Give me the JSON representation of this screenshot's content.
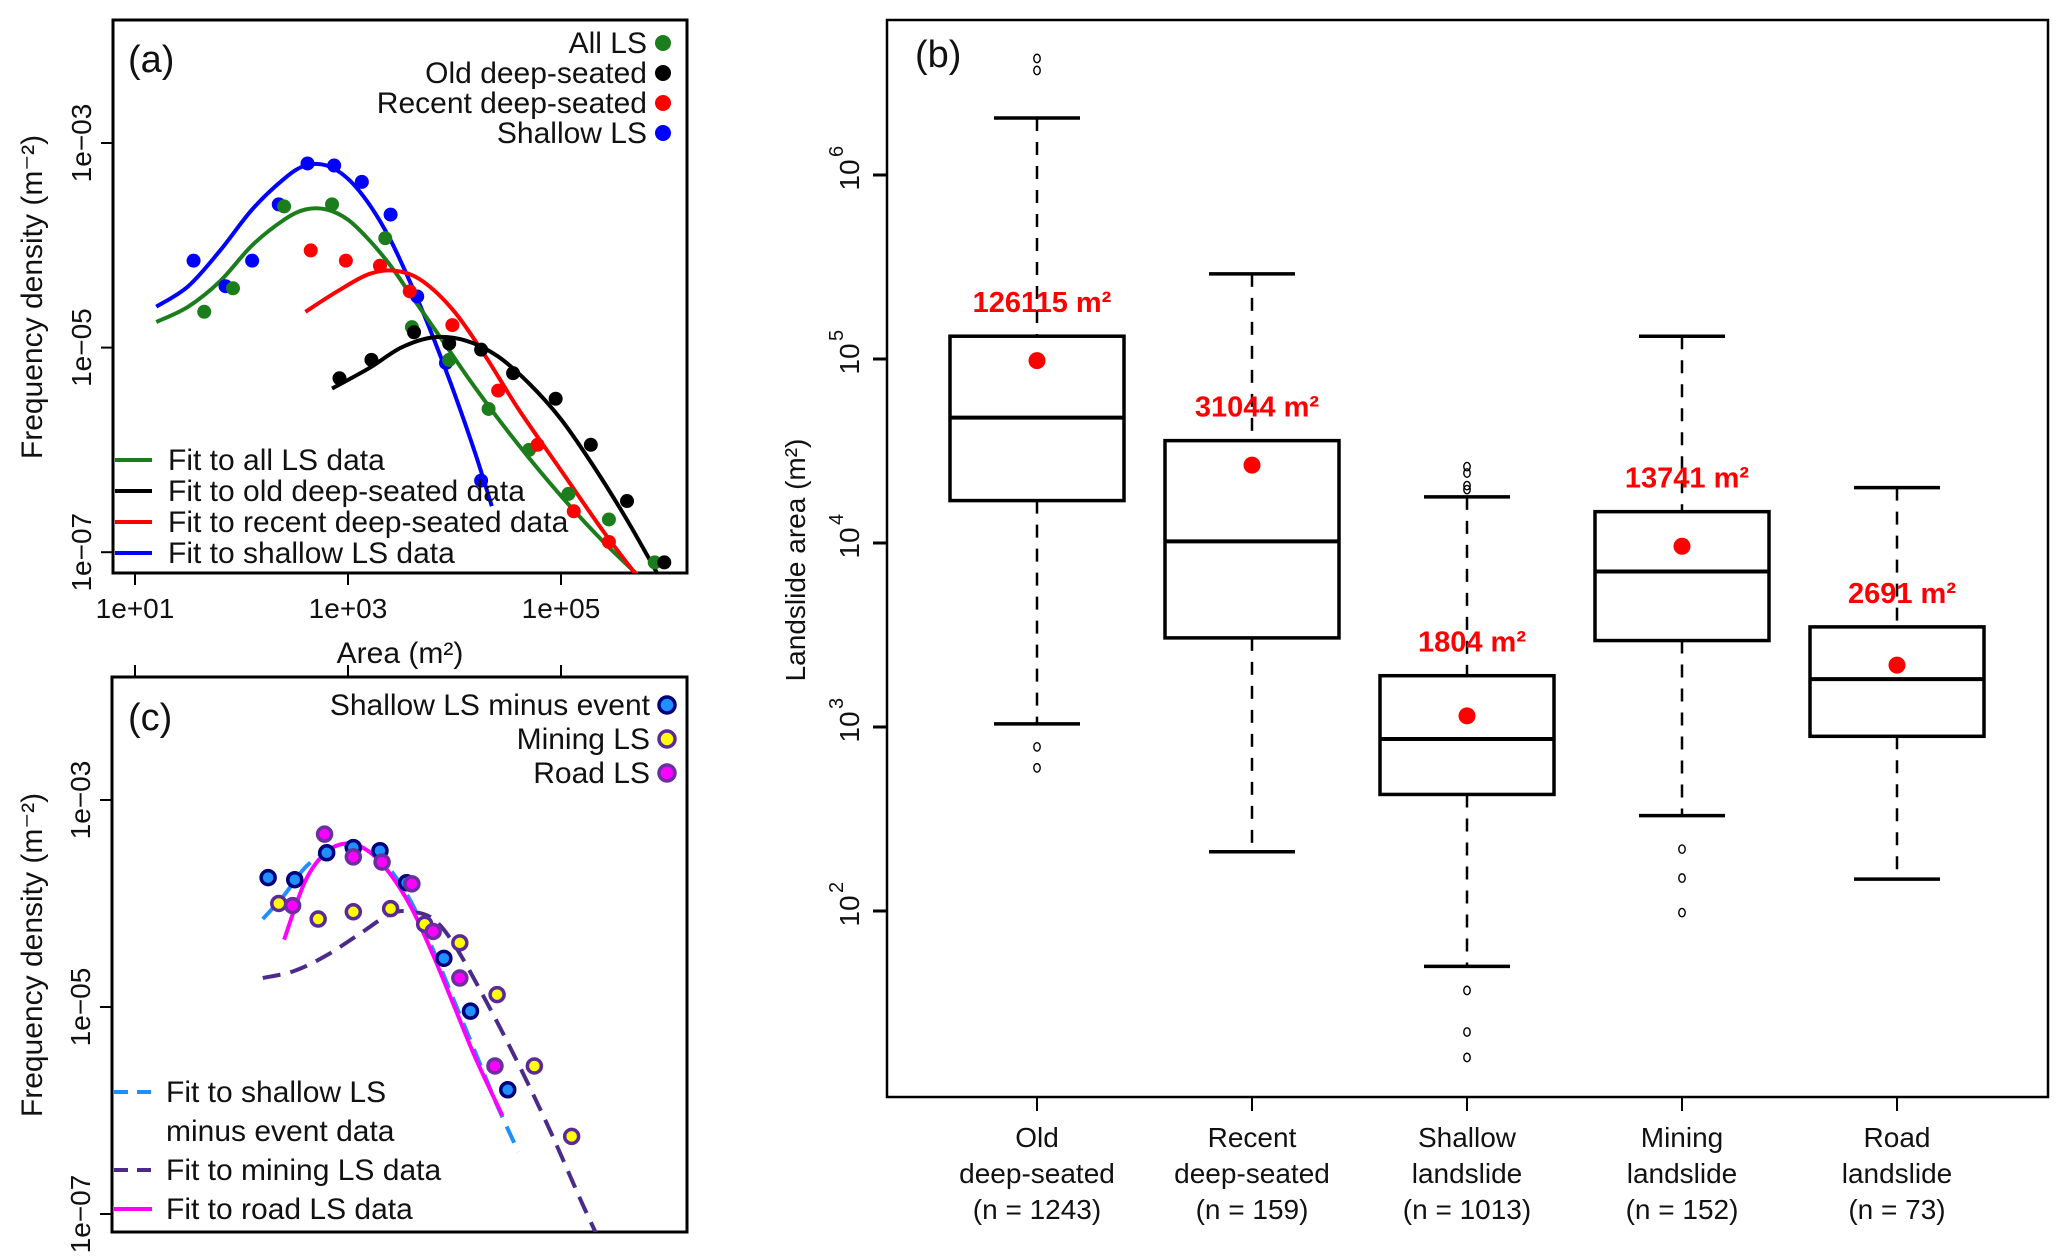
{
  "chart_data": [
    {
      "panel": "a",
      "type": "scatter",
      "panel_label": "(a)",
      "title": "",
      "xlabel": "Area (m²)",
      "ylabel": "Frequency density (m⁻²)",
      "xscale": "log",
      "yscale": "log",
      "xlim_log10": [
        0.8,
        6.2
      ],
      "ylim_log10": [
        -7.3,
        -2.2
      ],
      "xticks": [
        {
          "value_log10": 1,
          "label": "1e+01"
        },
        {
          "value_log10": 3,
          "label": "1e+03"
        },
        {
          "value_log10": 5,
          "label": "1e+05"
        }
      ],
      "yticks": [
        {
          "value_log10": -3,
          "label": "1e−03"
        },
        {
          "value_log10": -5,
          "label": "1e−05"
        },
        {
          "value_log10": -7,
          "label": "1e−07"
        }
      ],
      "legend_points": [
        {
          "label": "All LS",
          "color": "#1b7d1b"
        },
        {
          "label": "Old deep-seated",
          "color": "#000000"
        },
        {
          "label": "Recent deep-seated",
          "color": "#ff0000"
        },
        {
          "label": "Shallow LS",
          "color": "#0000ff"
        }
      ],
      "legend_lines": [
        {
          "label": "Fit to all LS data",
          "color": "#1b7d1b"
        },
        {
          "label": "Fit to old deep-seated data",
          "color": "#000000"
        },
        {
          "label": "Fit to recent deep-seated data",
          "color": "#ff0000"
        },
        {
          "label": "Fit to shallow LS data",
          "color": "#0000ff"
        }
      ],
      "series": [
        {
          "name": "Shallow LS",
          "color": "#0000ff",
          "kind": "points",
          "x_log10": [
            1.55,
            1.85,
            2.1,
            2.35,
            2.62,
            2.87,
            3.13,
            3.4,
            3.65,
            3.92,
            4.25
          ],
          "y_log10": [
            -4.15,
            -4.4,
            -4.15,
            -3.6,
            -3.2,
            -3.22,
            -3.38,
            -3.7,
            -4.5,
            -5.15,
            -6.3
          ]
        },
        {
          "name": "All LS",
          "color": "#1b7d1b",
          "kind": "points",
          "x_log10": [
            1.65,
            1.92,
            2.4,
            2.85,
            3.35,
            3.6,
            3.95,
            4.32,
            4.7,
            5.07,
            5.45,
            5.88
          ],
          "y_log10": [
            -4.65,
            -4.42,
            -3.62,
            -3.6,
            -3.93,
            -4.8,
            -5.12,
            -5.6,
            -6.0,
            -6.43,
            -6.68,
            -7.1
          ]
        },
        {
          "name": "Recent deep-seated",
          "color": "#ff0000",
          "kind": "points",
          "x_log10": [
            2.65,
            2.98,
            3.3,
            3.58,
            3.98,
            4.41,
            4.78,
            5.12,
            5.45
          ],
          "y_log10": [
            -4.05,
            -4.15,
            -4.2,
            -4.45,
            -4.78,
            -5.42,
            -5.95,
            -6.6,
            -6.9
          ]
        },
        {
          "name": "Old deep-seated",
          "color": "#000000",
          "kind": "points",
          "x_log10": [
            2.92,
            3.22,
            3.62,
            3.95,
            4.25,
            4.55,
            4.95,
            5.28,
            5.62,
            5.97
          ],
          "y_log10": [
            -5.3,
            -5.12,
            -4.85,
            -4.96,
            -5.02,
            -5.25,
            -5.5,
            -5.95,
            -6.5,
            -7.1
          ]
        },
        {
          "name": "Fit to shallow LS data",
          "color": "#0000ff",
          "kind": "line",
          "x_log10": [
            1.2,
            1.5,
            1.8,
            2.1,
            2.4,
            2.6,
            2.8,
            3.0,
            3.2,
            3.4,
            3.6,
            3.8,
            4.0,
            4.2,
            4.35
          ],
          "y_log10": [
            -4.6,
            -4.4,
            -4.05,
            -3.65,
            -3.35,
            -3.22,
            -3.22,
            -3.35,
            -3.6,
            -3.95,
            -4.4,
            -4.9,
            -5.45,
            -6.05,
            -6.55
          ]
        },
        {
          "name": "Fit to all LS data",
          "color": "#1b7d1b",
          "kind": "line",
          "x_log10": [
            1.2,
            1.5,
            1.8,
            2.1,
            2.4,
            2.6,
            2.8,
            3.0,
            3.2,
            3.4,
            3.6,
            3.9,
            4.2,
            4.6,
            5.0,
            5.4,
            5.8,
            6.1
          ],
          "y_log10": [
            -4.75,
            -4.6,
            -4.35,
            -4.0,
            -3.75,
            -3.65,
            -3.65,
            -3.75,
            -3.95,
            -4.2,
            -4.5,
            -4.95,
            -5.4,
            -5.95,
            -6.45,
            -6.9,
            -7.3,
            -7.6
          ]
        },
        {
          "name": "Fit to recent deep-seated data",
          "color": "#ff0000",
          "kind": "line",
          "x_log10": [
            2.6,
            2.9,
            3.2,
            3.45,
            3.7,
            4.0,
            4.3,
            4.6,
            5.0,
            5.4,
            5.8,
            6.05
          ],
          "y_log10": [
            -4.65,
            -4.45,
            -4.28,
            -4.25,
            -4.35,
            -4.65,
            -5.1,
            -5.6,
            -6.2,
            -6.8,
            -7.35,
            -7.7
          ]
        },
        {
          "name": "Fit to old deep-seated data",
          "color": "#000000",
          "kind": "line",
          "x_log10": [
            2.85,
            3.2,
            3.5,
            3.8,
            4.1,
            4.4,
            4.7,
            5.0,
            5.3,
            5.6,
            5.9,
            6.05
          ],
          "y_log10": [
            -5.4,
            -5.2,
            -5.0,
            -4.9,
            -4.93,
            -5.08,
            -5.35,
            -5.7,
            -6.15,
            -6.65,
            -7.2,
            -7.5
          ]
        }
      ]
    },
    {
      "panel": "c",
      "type": "scatter",
      "panel_label": "(c)",
      "title": "",
      "xlabel": "",
      "ylabel": "Frequency density (m⁻²)",
      "xscale": "log",
      "yscale": "log",
      "xlim_log10": [
        0.8,
        6.2
      ],
      "ylim_log10": [
        -7.2,
        -2.2
      ],
      "xticks": [
        {
          "value_log10": 1,
          "label": ""
        },
        {
          "value_log10": 3,
          "label": ""
        },
        {
          "value_log10": 5,
          "label": ""
        }
      ],
      "yticks": [
        {
          "value_log10": -3,
          "label": "1e−03"
        },
        {
          "value_log10": -5,
          "label": "1e−05"
        },
        {
          "value_log10": -7,
          "label": "1e−07"
        }
      ],
      "legend_points": [
        {
          "label": "Shallow LS minus event",
          "fill": "#1e90ff",
          "stroke": "#00007a"
        },
        {
          "label": "Mining LS",
          "fill": "#ffff00",
          "stroke": "#5b2a9a"
        },
        {
          "label": "Road LS",
          "fill": "#ff00ff",
          "stroke": "#6b2fa0"
        }
      ],
      "legend_lines": [
        {
          "label": "Fit to shallow LS\nminus event data",
          "color": "#1e90ff",
          "dash": true
        },
        {
          "label": "Fit to mining LS data",
          "color": "#4b2a8a",
          "dash": true
        },
        {
          "label": "Fit to road LS data",
          "color": "#ff00ff",
          "dash": false
        }
      ],
      "series": [
        {
          "name": "Shallow LS minus event",
          "kind": "points",
          "fill": "#1e90ff",
          "stroke": "#00007a",
          "x_log10": [
            2.25,
            2.5,
            2.8,
            3.05,
            3.3,
            3.55,
            3.9,
            4.15,
            4.5
          ],
          "y_log10": [
            -3.75,
            -3.77,
            -3.51,
            -3.46,
            -3.49,
            -3.8,
            -4.53,
            -5.04,
            -5.8
          ]
        },
        {
          "name": "Mining LS",
          "kind": "points",
          "fill": "#ffff00",
          "stroke": "#5b2a9a",
          "x_log10": [
            2.35,
            2.72,
            3.05,
            3.4,
            3.72,
            4.05,
            4.4,
            4.75,
            5.1
          ],
          "y_log10": [
            -4.0,
            -4.15,
            -4.08,
            -4.05,
            -4.2,
            -4.38,
            -4.88,
            -5.57,
            -6.25
          ]
        },
        {
          "name": "Road LS",
          "kind": "points",
          "fill": "#ff00ff",
          "stroke": "#6b2fa0",
          "x_log10": [
            2.48,
            2.78,
            3.05,
            3.32,
            3.6,
            3.8,
            4.05,
            4.38
          ],
          "y_log10": [
            -4.02,
            -3.33,
            -3.55,
            -3.6,
            -3.81,
            -4.27,
            -4.72,
            -5.57
          ]
        },
        {
          "name": "Fit to shallow LS minus event data",
          "kind": "line",
          "color": "#1e90ff",
          "dash": true,
          "x_log10": [
            2.2,
            2.4,
            2.6,
            2.8,
            3.0,
            3.2,
            3.4,
            3.6,
            3.8,
            4.0,
            4.2,
            4.4,
            4.6
          ],
          "y_log10": [
            -4.15,
            -3.92,
            -3.65,
            -3.5,
            -3.45,
            -3.5,
            -3.68,
            -4.0,
            -4.45,
            -4.95,
            -5.45,
            -5.95,
            -6.4
          ]
        },
        {
          "name": "Fit to mining LS data",
          "kind": "line",
          "color": "#4b2a8a",
          "dash": true,
          "x_log10": [
            2.2,
            2.5,
            2.8,
            3.1,
            3.4,
            3.6,
            3.8,
            4.0,
            4.3,
            4.6,
            4.9,
            5.2,
            5.45
          ],
          "y_log10": [
            -4.72,
            -4.65,
            -4.5,
            -4.3,
            -4.1,
            -4.08,
            -4.15,
            -4.4,
            -4.95,
            -5.55,
            -6.2,
            -6.9,
            -7.45
          ]
        },
        {
          "name": "Fit to road LS data",
          "kind": "line",
          "color": "#ff00ff",
          "dash": false,
          "x_log10": [
            2.4,
            2.6,
            2.8,
            3.0,
            3.2,
            3.4,
            3.6,
            3.8,
            4.0,
            4.2,
            4.45
          ],
          "y_log10": [
            -4.35,
            -3.78,
            -3.5,
            -3.42,
            -3.5,
            -3.72,
            -4.05,
            -4.5,
            -5.0,
            -5.5,
            -6.05
          ]
        }
      ]
    },
    {
      "panel": "b",
      "type": "box",
      "panel_label": "(b)",
      "title": "",
      "xlabel": "",
      "ylabel": "Landslide area (m²)",
      "yscale": "log",
      "ylim_log10": [
        0.99,
        6.84
      ],
      "yticks": [
        {
          "value_log10": 2,
          "base": "10",
          "exp": "2"
        },
        {
          "value_log10": 3,
          "base": "10",
          "exp": "3"
        },
        {
          "value_log10": 4,
          "base": "10",
          "exp": "4"
        },
        {
          "value_log10": 5,
          "base": "10",
          "exp": "5"
        },
        {
          "value_log10": 6,
          "base": "10",
          "exp": "6"
        }
      ],
      "mean_color": "#ff0000",
      "categories": [
        {
          "lines": [
            "Old",
            "deep-seated",
            "(n = 1243)"
          ],
          "n": 1243,
          "whisker_low": 1040,
          "q1": 17000,
          "median": 48000,
          "q3": 133000,
          "whisker_high": 2040000,
          "mean": 98000,
          "mean_label": "126115 m²",
          "outliers": [
            780,
            600,
            3700000,
            4300000
          ]
        },
        {
          "lines": [
            "Recent",
            "deep-seated",
            "(n = 159)"
          ],
          "n": 159,
          "whisker_low": 210,
          "q1": 3050,
          "median": 10200,
          "q3": 36000,
          "whisker_high": 290000,
          "mean": 26500,
          "mean_label": "31044 m²",
          "outliers": []
        },
        {
          "lines": [
            "Shallow",
            "landslide",
            "(n = 1013)"
          ],
          "n": 1013,
          "whisker_low": 50,
          "q1": 430,
          "median": 860,
          "q3": 1900,
          "whisker_high": 17800,
          "mean": 1150,
          "mean_label": "1804 m²",
          "outliers": [
            37,
            22,
            16,
            19500,
            20500,
            24000,
            26000
          ]
        },
        {
          "lines": [
            "Mining",
            "landslide",
            "(n = 152)"
          ],
          "n": 152,
          "whisker_low": 330,
          "q1": 2950,
          "median": 7000,
          "q3": 14800,
          "whisker_high": 133000,
          "mean": 9600,
          "mean_label": "13741 m²",
          "outliers": [
            217,
            151,
            98
          ]
        },
        {
          "lines": [
            "Road",
            "landslide",
            "(n = 73)"
          ],
          "n": 73,
          "whisker_low": 149,
          "q1": 890,
          "median": 1820,
          "q3": 3500,
          "whisker_high": 20000,
          "mean": 2170,
          "mean_label": "2691 m²",
          "outliers": []
        }
      ]
    }
  ]
}
